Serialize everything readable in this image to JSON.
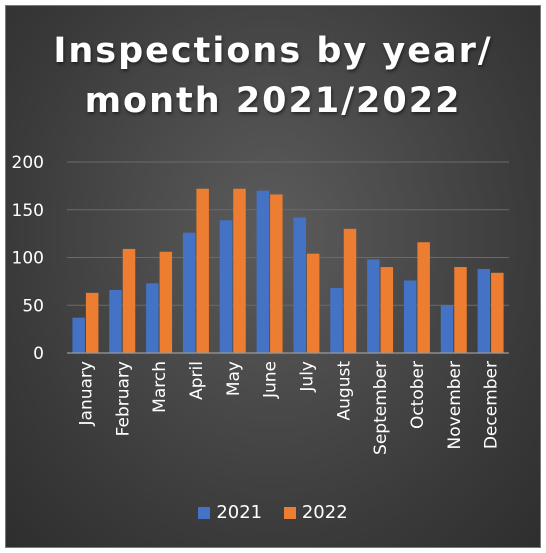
{
  "chart_data": {
    "type": "bar",
    "title_lines": [
      "Inspections by year/",
      "month 2021/2022"
    ],
    "categories": [
      "January",
      "February",
      "March",
      "April",
      "May",
      "June",
      "July",
      "August",
      "September",
      "October",
      "November",
      "December"
    ],
    "series": [
      {
        "name": "2021",
        "color": "#4472C4",
        "values": [
          37,
          66,
          73,
          126,
          139,
          170,
          142,
          68,
          98,
          76,
          50,
          88
        ]
      },
      {
        "name": "2022",
        "color": "#ED7D31",
        "values": [
          63,
          109,
          106,
          172,
          172,
          166,
          104,
          130,
          90,
          116,
          90,
          84
        ]
      }
    ],
    "ylim": [
      0,
      200
    ],
    "yticks": [
      0,
      50,
      100,
      150,
      200
    ],
    "grid": true,
    "legend": "bottom"
  }
}
